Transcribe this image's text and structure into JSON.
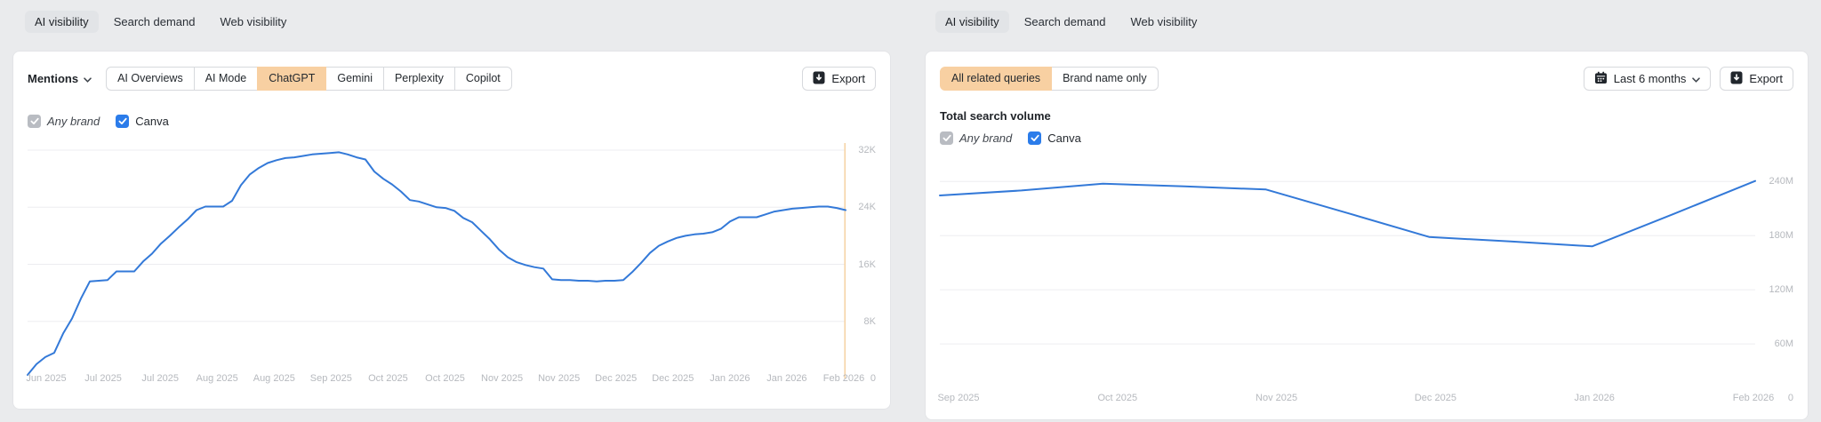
{
  "page": {
    "background": "#eaebed",
    "accent_blue": "#3379d8",
    "accent_orange": "#f8d0a2",
    "marker_orange": "#f6d2a2"
  },
  "left_panel": {
    "tabs": [
      {
        "label": "AI visibility",
        "selected": true
      },
      {
        "label": "Search demand",
        "selected": false
      },
      {
        "label": "Web visibility",
        "selected": false
      }
    ],
    "toolbar": {
      "metric_dropdown": "Mentions",
      "segments": [
        "AI Overviews",
        "AI Mode",
        "ChatGPT",
        "Gemini",
        "Perplexity",
        "Copilot"
      ],
      "selected_segment": "ChatGPT",
      "export_label": "Export"
    },
    "legend": [
      {
        "label": "Any brand",
        "checked": true,
        "style": "muted"
      },
      {
        "label": "Canva",
        "checked": true,
        "style": "active"
      }
    ]
  },
  "right_panel": {
    "tabs": [
      {
        "label": "AI visibility",
        "selected": true
      },
      {
        "label": "Search demand",
        "selected": false
      },
      {
        "label": "Web visibility",
        "selected": false
      }
    ],
    "toolbar": {
      "segments": [
        "All related queries",
        "Brand name only"
      ],
      "selected_segment": "All related queries",
      "date_range": "Last 6 months",
      "export_label": "Export"
    },
    "heading": "Total search volume",
    "legend": [
      {
        "label": "Any brand",
        "checked": true,
        "style": "muted"
      },
      {
        "label": "Canva",
        "checked": true,
        "style": "active"
      }
    ]
  },
  "chart_data": [
    {
      "type": "line",
      "name": "mentions-chart",
      "title": "ChatGPT mentions over time",
      "legend_position": "top-left",
      "grid": true,
      "ylim": [
        0,
        33000
      ],
      "yticks": [
        {
          "value": 32000,
          "label": "32K"
        },
        {
          "value": 24000,
          "label": "24K"
        },
        {
          "value": 16000,
          "label": "16K"
        },
        {
          "value": 8000,
          "label": "8K"
        },
        {
          "value": 0,
          "label": "0"
        }
      ],
      "xlabels": [
        "Jun 2025",
        "Jul 2025",
        "Jul 2025",
        "Aug 2025",
        "Aug 2025",
        "Sep 2025",
        "Oct 2025",
        "Oct 2025",
        "Nov 2025",
        "Nov 2025",
        "Dec 2025",
        "Dec 2025",
        "Jan 2026",
        "Jan 2026",
        "Feb 2026"
      ],
      "end_marker": true,
      "end_marker_color": "#f6d2a2",
      "series": [
        {
          "name": "Canva",
          "color": "#3379d8",
          "values": [
            500,
            2000,
            3000,
            3600,
            6300,
            8400,
            11200,
            13600,
            13700,
            13800,
            15000,
            15000,
            15000,
            16400,
            17500,
            18900,
            20000,
            21200,
            22300,
            23600,
            24100,
            24100,
            24100,
            24900,
            27100,
            28600,
            29500,
            30200,
            30600,
            30900,
            31000,
            31200,
            31400,
            31500,
            31600,
            31700,
            31400,
            31000,
            30700,
            29000,
            28000,
            27200,
            26200,
            25000,
            24800,
            24400,
            24000,
            23900,
            23500,
            22500,
            21900,
            20700,
            19500,
            18100,
            17000,
            16300,
            15900,
            15600,
            15400,
            13900,
            13800,
            13800,
            13700,
            13700,
            13600,
            13700,
            13700,
            13800,
            14900,
            16200,
            17600,
            18600,
            19200,
            19700,
            20000,
            20200,
            20300,
            20500,
            21000,
            22000,
            22600,
            22600,
            22600,
            23000,
            23400,
            23600,
            23800,
            23900,
            24000,
            24100,
            24100,
            23900,
            23600
          ]
        }
      ]
    },
    {
      "type": "line",
      "name": "search-volume-chart",
      "title": "Total search volume",
      "legend_position": "top-left",
      "grid": true,
      "ylim": [
        0,
        253000000
      ],
      "yticks": [
        {
          "value": 240000000,
          "label": "240M"
        },
        {
          "value": 180000000,
          "label": "180M"
        },
        {
          "value": 120000000,
          "label": "120M"
        },
        {
          "value": 60000000,
          "label": "60M"
        },
        {
          "value": 0,
          "label": "0"
        }
      ],
      "xlabels": [
        "Sep 2025",
        "Oct 2025",
        "Nov 2025",
        "Dec 2025",
        "Jan 2026",
        "Feb 2026"
      ],
      "end_marker": false,
      "series": [
        {
          "name": "Canva",
          "color": "#3379d8",
          "values": [
            224500000,
            230000000,
            237500000,
            234500000,
            231000000,
            205000000,
            178500000,
            173500000,
            168000000,
            204000000,
            240500000
          ]
        }
      ]
    }
  ]
}
